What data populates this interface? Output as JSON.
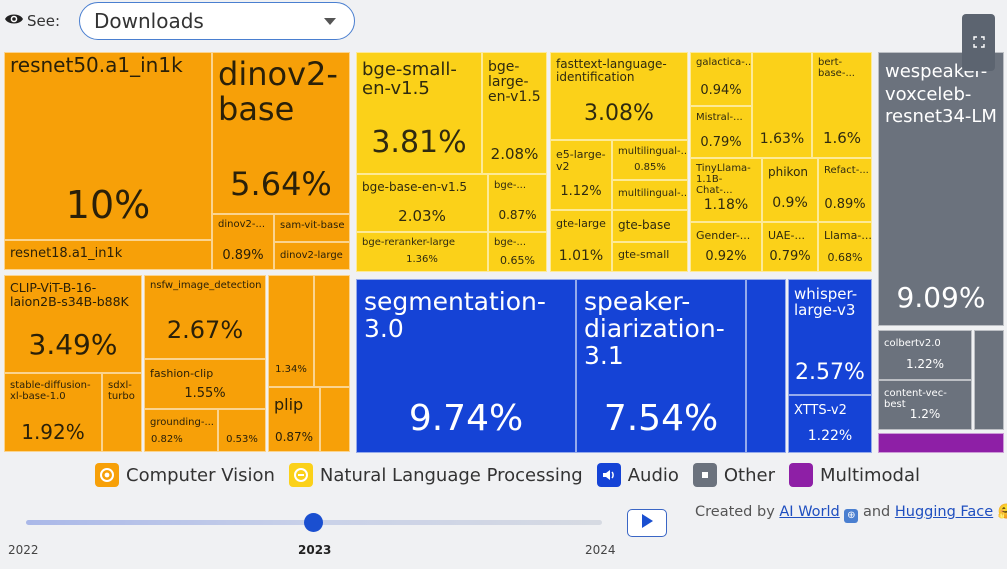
{
  "controls": {
    "see_label": "See:",
    "metric_value": "Downloads"
  },
  "treemap": {
    "tiles": [
      {
        "name": "resnet50.a1_in1k",
        "pct": "10%",
        "category": "Computer Vision"
      },
      {
        "name": "resnet18.a1_in1k",
        "pct": "",
        "category": "Computer Vision"
      },
      {
        "name": "dinov2-base",
        "pct": "5.64%",
        "category": "Computer Vision"
      },
      {
        "name": "dinov2-...",
        "pct": "0.89%",
        "category": "Computer Vision"
      },
      {
        "name": "sam-vit-base",
        "pct": "",
        "category": "Computer Vision"
      },
      {
        "name": "dinov2-large",
        "pct": "",
        "category": "Computer Vision"
      },
      {
        "name": "CLIP-ViT-B-16-laion2B-s34B-b88K",
        "pct": "3.49%",
        "category": "Computer Vision"
      },
      {
        "name": "nsfw_image_detection",
        "pct": "2.67%",
        "category": "Computer Vision"
      },
      {
        "name": "fashion-clip",
        "pct": "1.55%",
        "category": "Computer Vision"
      },
      {
        "name": "grounding-...",
        "pct": "0.82%",
        "category": "Computer Vision"
      },
      {
        "name": "",
        "pct": "0.53%",
        "category": "Computer Vision"
      },
      {
        "name": "stable-diffusion-xl-base-1.0",
        "pct": "1.92%",
        "category": "Computer Vision"
      },
      {
        "name": "sdxl-turbo",
        "pct": "",
        "category": "Computer Vision"
      },
      {
        "name": "",
        "pct": "1.34%",
        "category": "Computer Vision"
      },
      {
        "name": "plip",
        "pct": "0.87%",
        "category": "Computer Vision"
      },
      {
        "name": "bge-small-en-v1.5",
        "pct": "3.81%",
        "category": "Natural Language Processing"
      },
      {
        "name": "bge-large-en-v1.5",
        "pct": "2.08%",
        "category": "Natural Language Processing"
      },
      {
        "name": "bge-base-en-v1.5",
        "pct": "2.03%",
        "category": "Natural Language Processing"
      },
      {
        "name": "bge-...",
        "pct": "0.87%",
        "category": "Natural Language Processing"
      },
      {
        "name": "bge-reranker-large",
        "pct": "1.36%",
        "category": "Natural Language Processing"
      },
      {
        "name": "bge-...",
        "pct": "0.65%",
        "category": "Natural Language Processing"
      },
      {
        "name": "fasttext-language-identification",
        "pct": "3.08%",
        "category": "Natural Language Processing"
      },
      {
        "name": "e5-large-v2",
        "pct": "1.12%",
        "category": "Natural Language Processing"
      },
      {
        "name": "multilingual-...",
        "pct": "0.85%",
        "category": "Natural Language Processing"
      },
      {
        "name": "multilingual-...",
        "pct": "",
        "category": "Natural Language Processing"
      },
      {
        "name": "gte-large",
        "pct": "1.01%",
        "category": "Natural Language Processing"
      },
      {
        "name": "gte-base",
        "pct": "",
        "category": "Natural Language Processing"
      },
      {
        "name": "gte-small",
        "pct": "",
        "category": "Natural Language Processing"
      },
      {
        "name": "galactica-...",
        "pct": "0.94%",
        "category": "Natural Language Processing"
      },
      {
        "name": "Mistral-...",
        "pct": "0.79%",
        "category": "Natural Language Processing"
      },
      {
        "name": "",
        "pct": "1.63%",
        "category": "Natural Language Processing"
      },
      {
        "name": "bert-base-...",
        "pct": "1.6%",
        "category": "Natural Language Processing"
      },
      {
        "name": "TinyLlama-1.1B-Chat-...",
        "pct": "1.18%",
        "category": "Natural Language Processing"
      },
      {
        "name": "phikon",
        "pct": "0.9%",
        "category": "Natural Language Processing"
      },
      {
        "name": "Refact-...",
        "pct": "0.89%",
        "category": "Natural Language Processing"
      },
      {
        "name": "Gender-...",
        "pct": "0.92%",
        "category": "Natural Language Processing"
      },
      {
        "name": "UAE-...",
        "pct": "0.79%",
        "category": "Natural Language Processing"
      },
      {
        "name": "Llama-...",
        "pct": "0.68%",
        "category": "Natural Language Processing"
      },
      {
        "name": "segmentation-3.0",
        "pct": "9.74%",
        "category": "Audio"
      },
      {
        "name": "speaker-diarization-3.1",
        "pct": "7.54%",
        "category": "Audio"
      },
      {
        "name": "whisper-large-v3",
        "pct": "2.57%",
        "category": "Audio"
      },
      {
        "name": "XTTS-v2",
        "pct": "1.22%",
        "category": "Audio"
      },
      {
        "name": "wespeaker-voxceleb-resnet34-LM",
        "pct": "9.09%",
        "category": "Other"
      },
      {
        "name": "colbertv2.0",
        "pct": "1.22%",
        "category": "Other"
      },
      {
        "name": "content-vec-best",
        "pct": "1.2%",
        "category": "Other"
      }
    ]
  },
  "legend": [
    {
      "label": "Computer Vision",
      "color": "#f7a008"
    },
    {
      "label": "Natural Language Processing",
      "color": "#fbd119"
    },
    {
      "label": "Audio",
      "color": "#1543d6"
    },
    {
      "label": "Other",
      "color": "#6b727d"
    },
    {
      "label": "Multimodal",
      "color": "#8e1fa6"
    }
  ],
  "timeline": {
    "years": [
      "2022",
      "2023",
      "2024"
    ],
    "selected": "2023",
    "progress": 0.5
  },
  "credits": {
    "prefix": "Created by",
    "link1": "AI World",
    "middle": "and",
    "link2": "Hugging Face"
  }
}
